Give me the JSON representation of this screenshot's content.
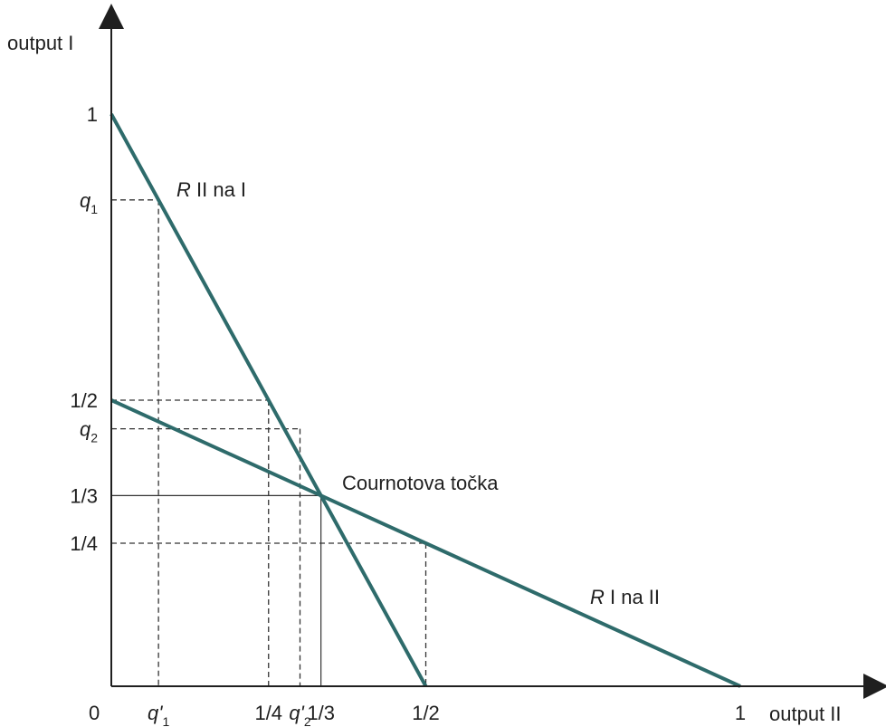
{
  "axes": {
    "y_label": "output I",
    "x_label": "output II",
    "origin_label": "0"
  },
  "ticks": {
    "y": [
      {
        "value": 1,
        "label": "1"
      },
      {
        "value": 0.85,
        "label": "q",
        "sub": "1"
      },
      {
        "value": 0.5,
        "label": "1/2"
      },
      {
        "value": 0.45,
        "label": "q",
        "sub": "2"
      },
      {
        "value": 0.3333,
        "label": "1/3"
      },
      {
        "value": 0.25,
        "label": "1/4"
      }
    ],
    "x": [
      {
        "value": 0.075,
        "label": "q'",
        "sub": "1"
      },
      {
        "value": 0.25,
        "label": "1/4"
      },
      {
        "value": 0.3,
        "label": "q'",
        "sub": "2"
      },
      {
        "value": 0.3333,
        "label": "1/3"
      },
      {
        "value": 0.5,
        "label": "1/2"
      },
      {
        "value": 1,
        "label": "1"
      }
    ]
  },
  "curves": {
    "r_ii_na_i": {
      "italic": "R",
      "rest": " II na I"
    },
    "r_i_na_ii": {
      "italic": "R",
      "rest": " I na II"
    }
  },
  "cournot_label": "Cournotova točka",
  "colors": {
    "curve": "#2e6b6b",
    "axis": "#1f1f1f",
    "guide": "#333333"
  },
  "chart_data": {
    "type": "line",
    "xlabel": "output II",
    "ylabel": "output I",
    "xlim": [
      0,
      1
    ],
    "ylim": [
      0,
      1
    ],
    "series": [
      {
        "name": "R II na I",
        "points": [
          [
            0,
            1
          ],
          [
            0.5,
            0
          ]
        ]
      },
      {
        "name": "R I na II",
        "points": [
          [
            0,
            0.5
          ],
          [
            1,
            0
          ]
        ]
      }
    ],
    "equilibrium": {
      "label": "Cournotova točka",
      "x": 0.3333,
      "y": 0.3333
    }
  }
}
